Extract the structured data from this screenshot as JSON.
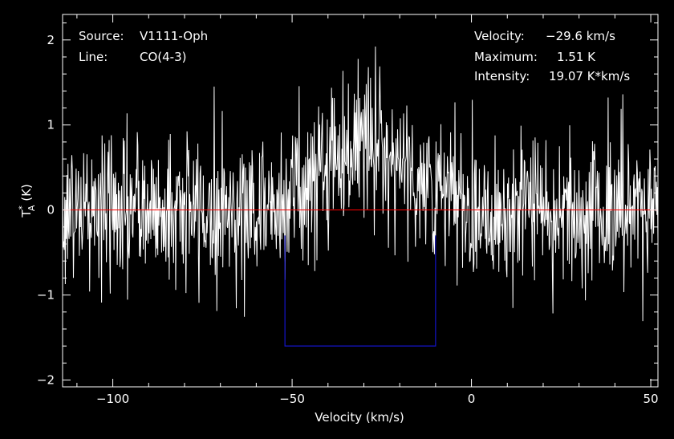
{
  "info_left": {
    "source_label": "Source:",
    "source_value": "V1111-Oph",
    "line_label": "Line:",
    "line_value": "CO(4-3)"
  },
  "info_right": {
    "velocity_label": "Velocity:",
    "velocity_value": "−29.6 km/s",
    "maximum_label": "Maximum:",
    "maximum_value": "1.51 K",
    "intensity_label": "Intensity:",
    "intensity_value": "19.07 K*km/s"
  },
  "chart_data": {
    "type": "line",
    "xlabel": "Velocity (km/s)",
    "ylabel": "T*A (K)",
    "xlim": [
      -114,
      52
    ],
    "ylim": [
      -2.08,
      2.3
    ],
    "x_ticks": [
      -100,
      -50,
      0,
      50
    ],
    "x_tick_labels": [
      "−100",
      "−50",
      "0",
      "50"
    ],
    "y_ticks": [
      -2,
      -1,
      0,
      1,
      2
    ],
    "y_tick_labels": [
      "−2",
      "−1",
      "0",
      "1",
      "2"
    ],
    "grid": false,
    "baseline": {
      "value": 0,
      "color": "#ff0000"
    },
    "integration_window": {
      "x": [
        -52,
        -10
      ],
      "y": [
        -1.6,
        -0.3
      ],
      "color": "#1414c8"
    },
    "series": [
      {
        "line_color": "#ffffff",
        "shape": {
          "noise_sigma": 0.45,
          "gaussian": {
            "center": -29.6,
            "fwhm": 28,
            "peak": 0.8
          }
        }
      }
    ],
    "colors": {
      "background": "#000000",
      "axes": "#ffffff",
      "spectrum": "#ffffff"
    }
  }
}
